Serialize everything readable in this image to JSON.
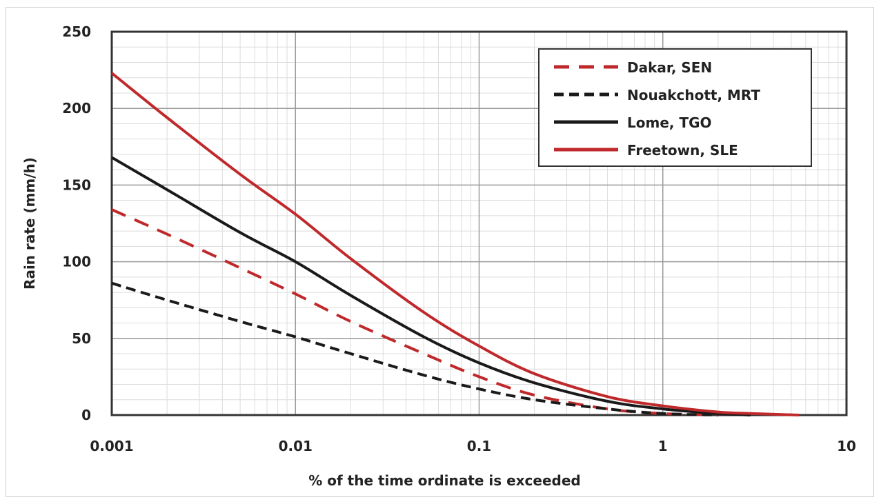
{
  "chart_data": {
    "type": "line",
    "title": "",
    "xlabel": "% of the time ordinate is exceeded",
    "ylabel": "Rain rate (mm/h)",
    "xscale": "log",
    "xlim": [
      0.001,
      10
    ],
    "ylim": [
      0,
      250
    ],
    "grid": true,
    "legend_position": "top-right",
    "x_ticks": [
      "0.001",
      "0.01",
      "0.1",
      "1",
      "10"
    ],
    "y_ticks": [
      "0",
      "50",
      "100",
      "150",
      "200",
      "250"
    ],
    "series": [
      {
        "name": "Dakar, SEN",
        "color": "#c0292b",
        "style": "dashed",
        "x": [
          0.001,
          0.002,
          0.005,
          0.01,
          0.02,
          0.05,
          0.1,
          0.2,
          0.5,
          1,
          2
        ],
        "y": [
          134,
          118,
          96,
          79,
          61,
          40,
          25,
          13,
          4,
          1,
          0
        ]
      },
      {
        "name": "Nouakchott, MRT",
        "color": "#1a1a1a",
        "style": "dashed",
        "x": [
          0.001,
          0.002,
          0.005,
          0.01,
          0.02,
          0.05,
          0.1,
          0.2,
          0.5,
          1,
          2
        ],
        "y": [
          86,
          75,
          61,
          51,
          40,
          26,
          17,
          10,
          4,
          1,
          0
        ]
      },
      {
        "name": "Lome, TGO",
        "color": "#1a1a1a",
        "style": "solid",
        "x": [
          0.001,
          0.002,
          0.005,
          0.01,
          0.02,
          0.05,
          0.1,
          0.2,
          0.5,
          1,
          2,
          3
        ],
        "y": [
          168,
          147,
          119,
          100,
          78,
          51,
          34,
          21,
          9,
          4,
          1,
          0
        ]
      },
      {
        "name": "Freetown, SLE",
        "color": "#c0292b",
        "style": "solid",
        "x": [
          0.001,
          0.002,
          0.005,
          0.01,
          0.02,
          0.05,
          0.1,
          0.2,
          0.5,
          1,
          2,
          3,
          5.5
        ],
        "y": [
          223,
          194,
          157,
          131,
          102,
          67,
          45,
          27,
          12,
          6,
          2,
          1,
          0
        ]
      }
    ]
  }
}
